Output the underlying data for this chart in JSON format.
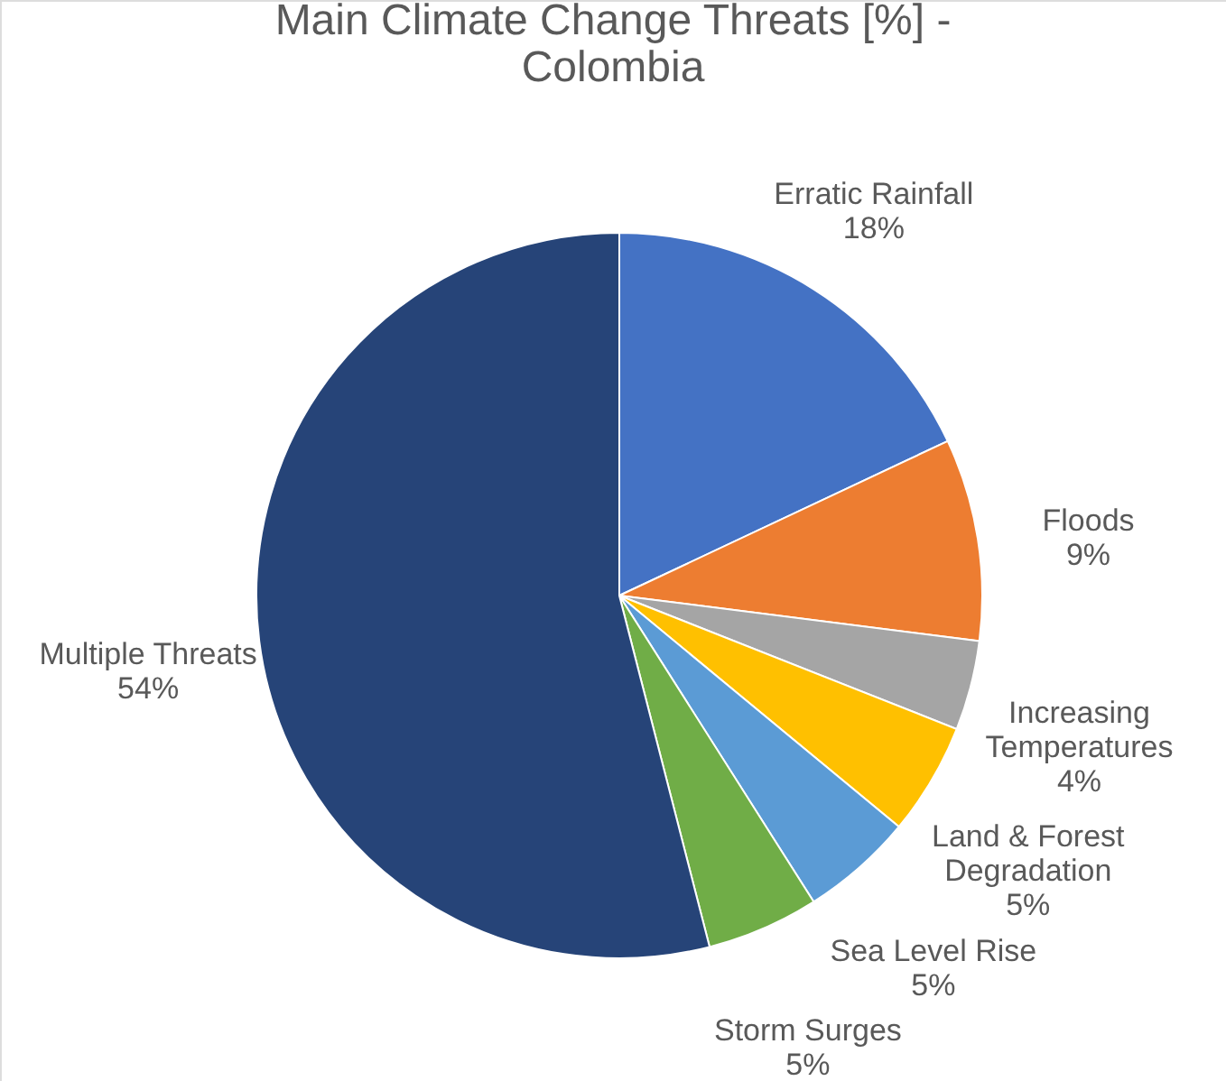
{
  "chart_data": {
    "type": "pie",
    "title": "Main Climate Change Threats [%] - Colombia",
    "categories": [
      "Erratic Rainfall",
      "Floods",
      "Increasing Temperatures",
      "Land & Forest Degradation",
      "Sea Level Rise",
      "Storm Surges",
      "Multiple Threats"
    ],
    "values": [
      18,
      9,
      4,
      5,
      5,
      5,
      54
    ],
    "colors": [
      "#4472c4",
      "#ed7d31",
      "#a5a5a5",
      "#ffc000",
      "#5b9bd5",
      "#70ad47",
      "#264478"
    ],
    "value_labels": [
      "18%",
      "9%",
      "4%",
      "5%",
      "5%",
      "5%",
      "54%"
    ],
    "legend": false
  }
}
